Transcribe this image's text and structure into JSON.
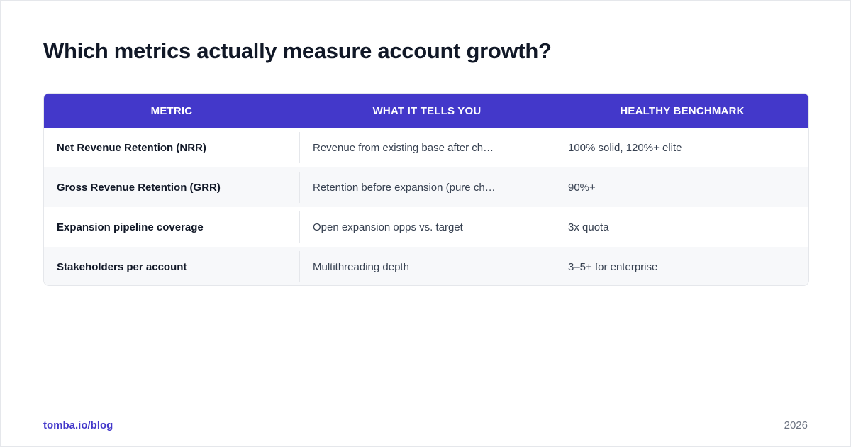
{
  "page": {
    "title": "Which metrics actually measure account growth?"
  },
  "table": {
    "headers": [
      "METRIC",
      "WHAT IT TELLS YOU",
      "HEALTHY BENCHMARK"
    ],
    "rows": [
      [
        "Net Revenue Retention (NRR)",
        "Revenue from existing base after ch…",
        "100% solid, 120%+ elite"
      ],
      [
        "Gross Revenue Retention (GRR)",
        "Retention before expansion (pure ch…",
        "90%+"
      ],
      [
        "Expansion pipeline coverage",
        "Open expansion opps vs. target",
        "3x quota"
      ],
      [
        "Stakeholders per account",
        "Multithreading depth",
        "3–5+ for enterprise"
      ]
    ]
  },
  "footer": {
    "source": "tomba.io/blog",
    "year": "2026"
  },
  "colors": {
    "accent": "#4338ca",
    "header_text": "#ffffff",
    "row_alt": "#f7f8fa"
  }
}
